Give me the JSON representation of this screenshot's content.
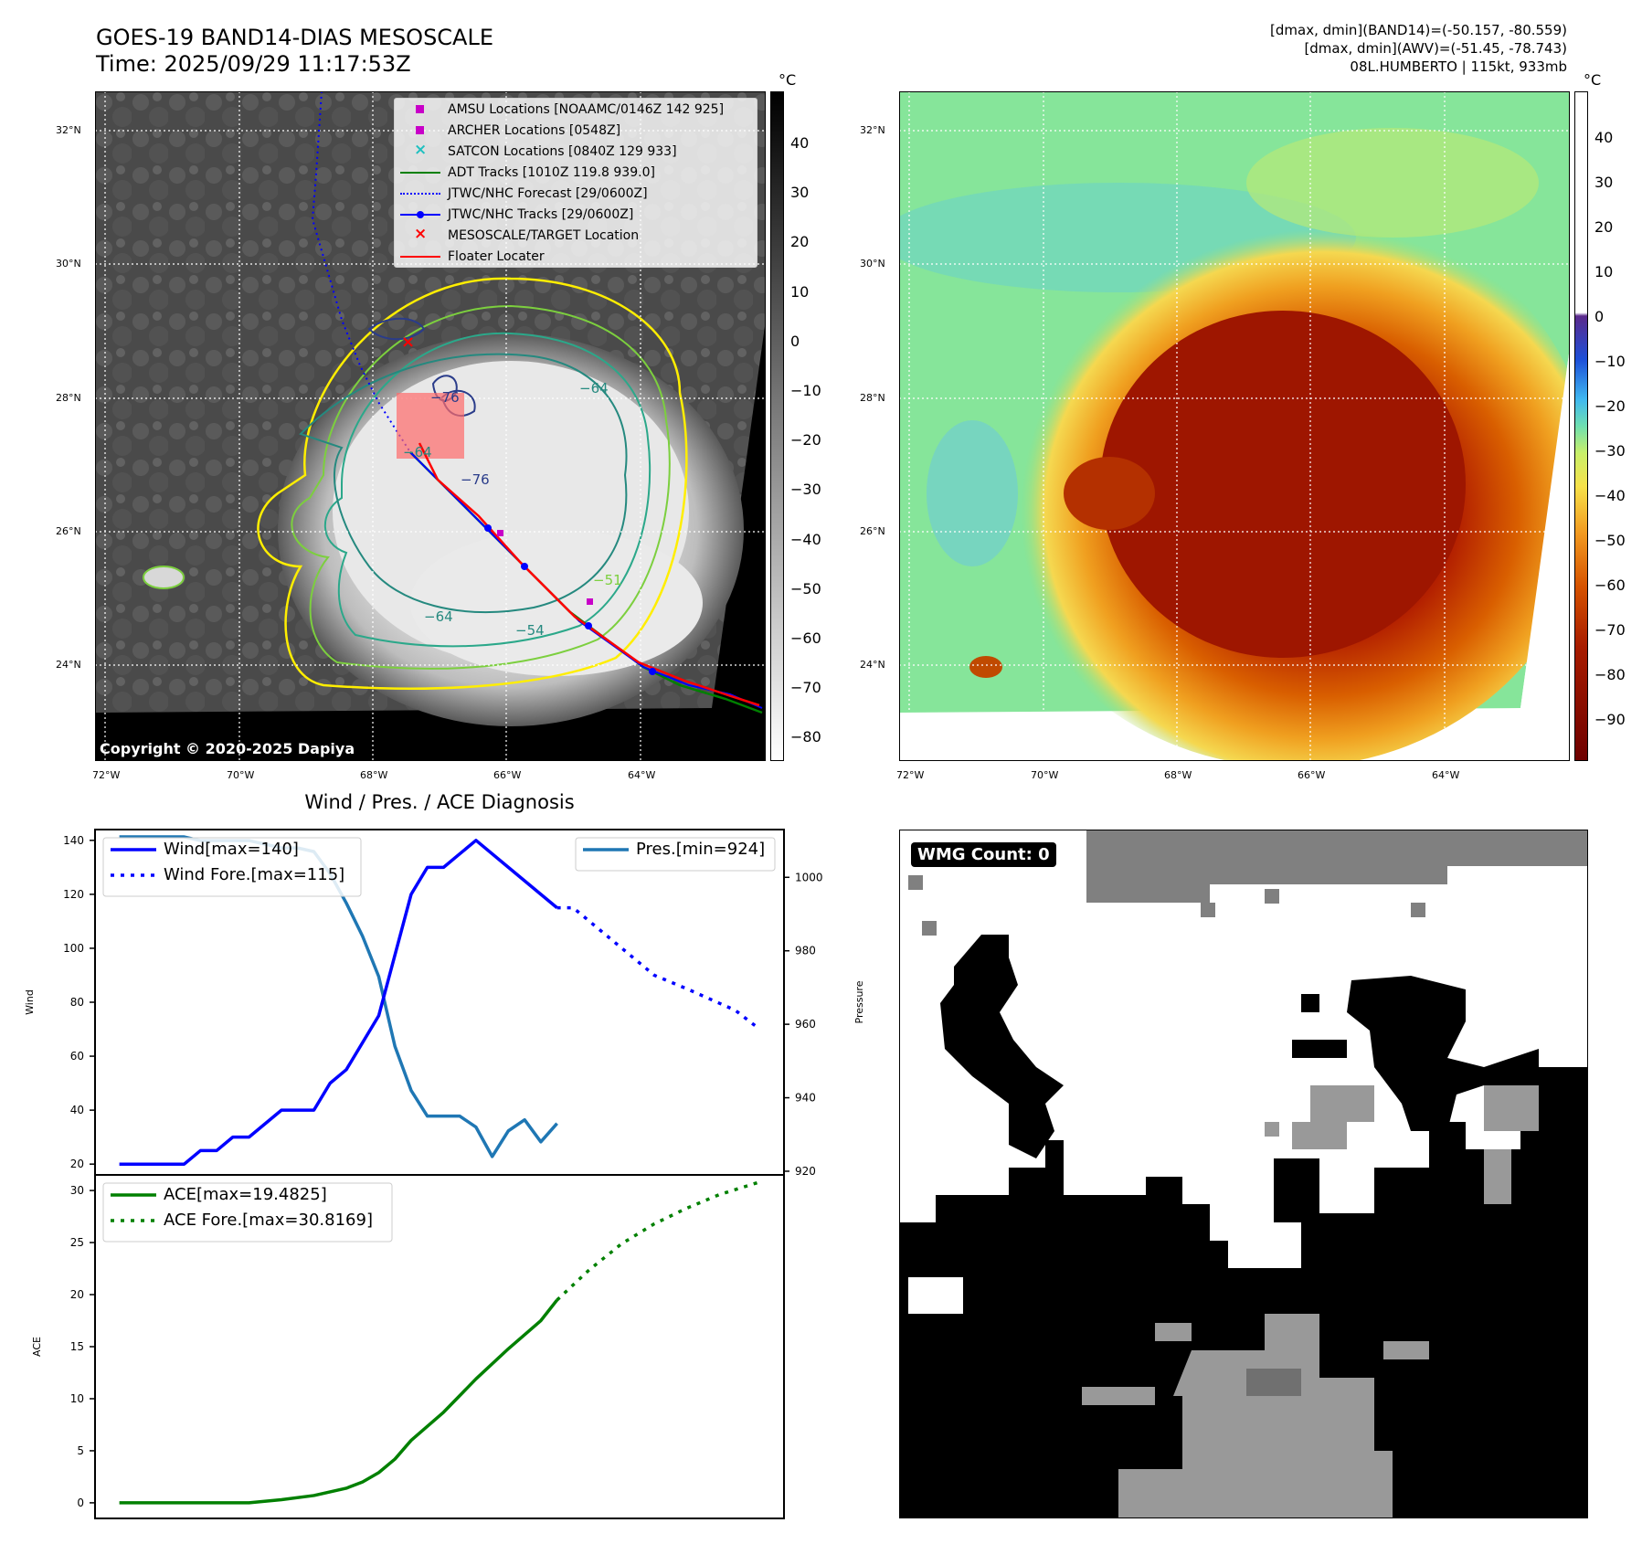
{
  "header": {
    "title_line1": "GOES-19 BAND14-DIAS MESOSCALE",
    "title_line2": "Time: 2025/09/29 11:17:53Z",
    "stats_line1": "[dmax, dmin](BAND14)=(-50.157, -80.559)",
    "stats_line2": "[dmax, dmin](AWV)=(-51.45, -78.743)",
    "stats_line3": "08L.HUMBERTO | 115kt, 933mb"
  },
  "map_axes": {
    "lat_labels": [
      "32°N",
      "30°N",
      "28°N",
      "26°N",
      "24°N"
    ],
    "lon_labels": [
      "72°W",
      "70°W",
      "68°W",
      "66°W",
      "64°W"
    ]
  },
  "ir_panel": {
    "colorbar_unit": "°C",
    "colorbar_ticks": [
      "40",
      "30",
      "20",
      "10",
      "0",
      "−10",
      "−20",
      "−30",
      "−40",
      "−50",
      "−60",
      "−70",
      "−80"
    ],
    "contour_labels": [
      "−76",
      "−64",
      "−76",
      "−64",
      "−64",
      "−54",
      "−51"
    ],
    "copyright": "Copyright © 2020-2025 Dapiya",
    "legend": [
      {
        "label": "AMSU Locations [NOAAMC/0146Z 142 925]",
        "marker": "square",
        "color": "#c800c8"
      },
      {
        "label": "ARCHER Locations [0548Z]",
        "marker": "square",
        "color": "#c800c8"
      },
      {
        "label": "SATCON Locations [0840Z 129 933]",
        "marker": "x",
        "color": "#20c0c0"
      },
      {
        "label": "ADT Tracks [1010Z 119.8 939.0]",
        "marker": "line",
        "color": "#008000"
      },
      {
        "label": "JTWC/NHC Forecast [29/0600Z]",
        "marker": "dotted",
        "color": "#0000ff"
      },
      {
        "label": "JTWC/NHC Tracks [29/0600Z]",
        "marker": "line-dot",
        "color": "#0000ff"
      },
      {
        "label": "MESOSCALE/TARGET Location",
        "marker": "x",
        "color": "#ff0000"
      },
      {
        "label": "Floater Locater",
        "marker": "line",
        "color": "#ff0000"
      }
    ]
  },
  "awv_panel": {
    "colorbar_unit": "°C",
    "colorbar_ticks": [
      "40",
      "30",
      "20",
      "10",
      "0",
      "−10",
      "−20",
      "−30",
      "−40",
      "−50",
      "−60",
      "−70",
      "−80",
      "−90"
    ]
  },
  "wind_panel": {
    "title": "Wind / Pres. / ACE Diagnosis",
    "wind_axis_label": "Wind",
    "pressure_axis_label": "Pressure",
    "ace_axis_label": "ACE",
    "wind_legend": [
      "Wind[max=140]",
      "Wind Fore.[max=115]"
    ],
    "pressure_legend": [
      "Pres.[min=924]"
    ],
    "ace_legend": [
      "ACE[max=19.4825]",
      "ACE Fore.[max=30.8169]"
    ]
  },
  "wmg_panel": {
    "label": "WMG Count: 0"
  },
  "chart_data": [
    {
      "type": "line",
      "title": "Wind / Pres. / ACE Diagnosis",
      "ylabel": "Wind",
      "ylim": [
        16,
        144
      ],
      "yticks": [
        20,
        40,
        60,
        80,
        100,
        120,
        140
      ],
      "x": [
        0,
        1,
        2,
        3,
        4,
        5,
        6,
        7,
        8,
        9,
        10,
        11,
        12,
        13,
        14,
        15,
        16,
        17,
        18,
        19,
        20,
        21,
        22,
        23,
        24,
        25,
        26,
        27,
        28,
        29,
        30,
        31,
        32,
        33,
        34,
        35,
        36,
        37,
        38,
        39,
        40,
        41
      ],
      "series": [
        {
          "name": "Wind[max=140]",
          "color": "#0000ff",
          "style": "solid",
          "x": [
            0,
            4,
            5,
            6,
            7,
            8,
            10,
            12,
            13,
            14,
            16,
            18,
            19,
            20,
            21,
            22,
            24,
            27
          ],
          "values": [
            20,
            20,
            25,
            25,
            30,
            30,
            40,
            40,
            50,
            55,
            75,
            120,
            130,
            130,
            135,
            140,
            130,
            115
          ]
        },
        {
          "name": "Wind Fore.[max=115]",
          "color": "#0000ff",
          "style": "dotted",
          "x": [
            27,
            28,
            29,
            31,
            33,
            35,
            38,
            39.5
          ],
          "values": [
            115,
            115,
            110,
            100,
            90,
            85,
            77,
            70
          ]
        }
      ]
    },
    {
      "type": "line",
      "ylabel": "Pressure",
      "ylim": [
        919,
        1013
      ],
      "yticks": [
        920,
        940,
        960,
        980,
        1000
      ],
      "series": [
        {
          "name": "Pres.[min=924]",
          "color": "#1f77b4",
          "style": "solid",
          "x": [
            0,
            1,
            2,
            3,
            4,
            5,
            6,
            7,
            8,
            9,
            10,
            11,
            12,
            13,
            14,
            15,
            16,
            17,
            18,
            19,
            20,
            21,
            22,
            23,
            24,
            25,
            26,
            27
          ],
          "values": [
            1011,
            1011,
            1011,
            1011,
            1011,
            1010,
            1010,
            1010,
            1010,
            1009,
            1008,
            1008,
            1007,
            1001,
            993,
            984,
            973,
            954,
            942,
            935,
            935,
            935,
            932,
            924,
            931,
            934,
            928,
            933
          ]
        }
      ]
    },
    {
      "type": "line",
      "ylabel": "ACE",
      "ylim": [
        -1.5,
        31.5
      ],
      "yticks": [
        0,
        5,
        10,
        15,
        20,
        25,
        30
      ],
      "series": [
        {
          "name": "ACE[max=19.4825]",
          "color": "#008000",
          "style": "solid",
          "x": [
            0,
            2,
            4,
            6,
            8,
            10,
            12,
            14,
            15,
            16,
            17,
            18,
            20,
            22,
            24,
            26,
            27
          ],
          "values": [
            0,
            0,
            0,
            0,
            0,
            0.3,
            0.7,
            1.4,
            2.0,
            2.9,
            4.2,
            6.0,
            8.7,
            11.9,
            14.8,
            17.5,
            19.48
          ]
        },
        {
          "name": "ACE Fore.[max=30.8169]",
          "color": "#008000",
          "style": "dotted",
          "x": [
            27,
            29,
            31,
            33,
            35,
            37,
            39.5
          ],
          "values": [
            19.48,
            22.4,
            24.9,
            26.8,
            28.3,
            29.6,
            30.82
          ]
        }
      ]
    }
  ]
}
